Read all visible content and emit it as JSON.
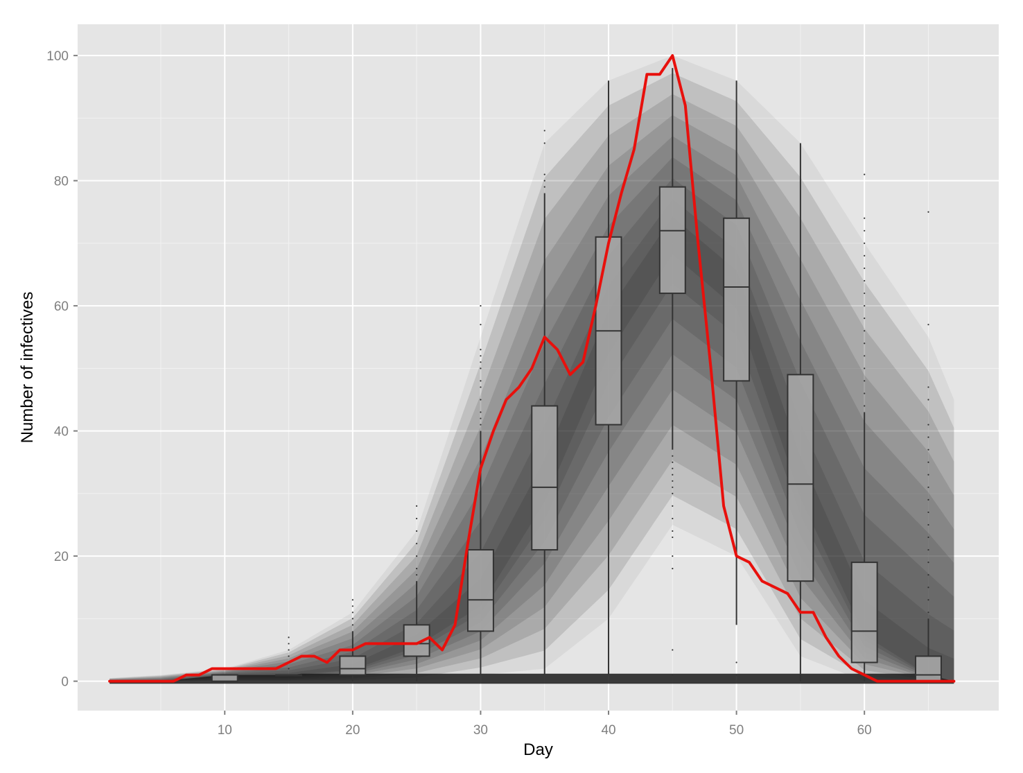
{
  "chart_data": {
    "type": "line",
    "xlabel": "Day",
    "ylabel": "Number of infectives",
    "xlim": [
      -1.5,
      70.5
    ],
    "ylim": [
      -4.7,
      105
    ],
    "x_ticks": [
      10,
      20,
      30,
      40,
      50,
      60
    ],
    "y_ticks": [
      0,
      20,
      40,
      60,
      80,
      100
    ],
    "grid": true,
    "legend": "none",
    "colors": {
      "panel": "#e5e5e5",
      "grid_major": "#ffffff",
      "grid_minor": "#f2f2f2",
      "ensemble": "#1a1a1a",
      "box_fill": "#a6a6a6",
      "box_stroke": "#333333",
      "observed": "#e8100c"
    },
    "series": [
      {
        "name": "",
        "style": "observed",
        "x": [
          1,
          2,
          3,
          4,
          5,
          6,
          7,
          8,
          9,
          10,
          11,
          12,
          13,
          14,
          15,
          16,
          17,
          18,
          19,
          20,
          21,
          22,
          23,
          24,
          25,
          26,
          27,
          28,
          29,
          30,
          31,
          32,
          33,
          34,
          35,
          36,
          37,
          38,
          39,
          40,
          41,
          42,
          43,
          44,
          45,
          46,
          47,
          48,
          49,
          50,
          51,
          52,
          53,
          54,
          55,
          56,
          57,
          58,
          59,
          60,
          61,
          62,
          63,
          64,
          65,
          66,
          67
        ],
        "y": [
          0,
          0,
          0,
          0,
          0,
          0,
          1,
          1,
          2,
          2,
          2,
          2,
          2,
          2,
          3,
          4,
          4,
          3,
          5,
          5,
          6,
          6,
          6,
          6,
          6,
          7,
          5,
          9,
          22,
          34,
          40,
          45,
          47,
          50,
          55,
          53,
          49,
          51,
          60,
          70,
          78,
          85,
          97,
          97,
          100,
          92,
          70,
          50,
          28,
          20,
          19,
          16,
          15,
          14,
          11,
          11,
          7,
          4,
          2,
          1,
          0,
          0,
          0,
          0,
          0,
          0,
          0
        ]
      }
    ],
    "ensemble_envelope": {
      "x": [
        1,
        5,
        10,
        15,
        20,
        25,
        30,
        35,
        40,
        45,
        50,
        55,
        60,
        65,
        67
      ],
      "upper": [
        0.5,
        1,
        2,
        5,
        11,
        24,
        55,
        86,
        96,
        100,
        96,
        86,
        70,
        55,
        45
      ],
      "median": [
        0,
        0,
        1,
        1,
        2,
        6,
        13,
        31,
        56,
        72,
        63,
        31.5,
        8,
        1,
        0
      ],
      "lower": [
        0,
        0,
        0,
        0,
        0,
        0,
        1,
        2,
        10,
        25,
        20,
        4,
        0,
        0,
        0
      ]
    },
    "boxplots": [
      {
        "x": 10,
        "q1": 0,
        "median": 1,
        "q3": 1,
        "whisker_low": 0,
        "whisker_high": 1,
        "outliers": []
      },
      {
        "x": 15,
        "q1": 1,
        "median": 1,
        "q3": 1,
        "whisker_low": 1,
        "whisker_high": 1,
        "outliers": [
          2,
          3,
          4,
          5,
          6,
          7
        ]
      },
      {
        "x": 20,
        "q1": 1,
        "median": 2,
        "q3": 4,
        "whisker_low": 0,
        "whisker_high": 8,
        "outliers": [
          9,
          10,
          11,
          12,
          13
        ]
      },
      {
        "x": 25,
        "q1": 4,
        "median": 6,
        "q3": 9,
        "whisker_low": 0,
        "whisker_high": 16,
        "outliers": [
          17,
          18,
          20,
          22,
          24,
          26,
          28
        ]
      },
      {
        "x": 30,
        "q1": 8,
        "median": 13,
        "q3": 21,
        "whisker_low": 1,
        "whisker_high": 40,
        "outliers": [
          41,
          42,
          43,
          45,
          47,
          48,
          50,
          51,
          52,
          53,
          57,
          60
        ]
      },
      {
        "x": 35,
        "q1": 21,
        "median": 31,
        "q3": 44,
        "whisker_low": 1,
        "whisker_high": 78,
        "outliers": [
          79,
          80,
          81,
          86,
          88
        ]
      },
      {
        "x": 40,
        "q1": 41,
        "median": 56,
        "q3": 71,
        "whisker_low": 1,
        "whisker_high": 96,
        "outliers": []
      },
      {
        "x": 45,
        "q1": 62,
        "median": 72,
        "q3": 79,
        "whisker_low": 37,
        "whisker_high": 98,
        "outliers": [
          1,
          5,
          18,
          20,
          23,
          24,
          26,
          28,
          30,
          31,
          32,
          33,
          34,
          35,
          36
        ]
      },
      {
        "x": 50,
        "q1": 48,
        "median": 63,
        "q3": 74,
        "whisker_low": 9,
        "whisker_high": 96,
        "outliers": [
          1,
          3
        ]
      },
      {
        "x": 55,
        "q1": 16,
        "median": 31.5,
        "q3": 49,
        "whisker_low": 0,
        "whisker_high": 86,
        "outliers": []
      },
      {
        "x": 60,
        "q1": 3,
        "median": 8,
        "q3": 19,
        "whisker_low": 0,
        "whisker_high": 43,
        "outliers": [
          44,
          46,
          48,
          50,
          52,
          54,
          56,
          58,
          60,
          62,
          64,
          66,
          68,
          70,
          72,
          74,
          81
        ]
      },
      {
        "x": 65,
        "q1": 0,
        "median": 1,
        "q3": 4,
        "whisker_low": 0,
        "whisker_high": 10,
        "outliers": [
          11,
          13,
          15,
          17,
          19,
          21,
          23,
          25,
          27,
          29,
          31,
          33,
          35,
          37,
          39,
          41,
          45,
          47,
          57,
          75
        ]
      }
    ]
  }
}
